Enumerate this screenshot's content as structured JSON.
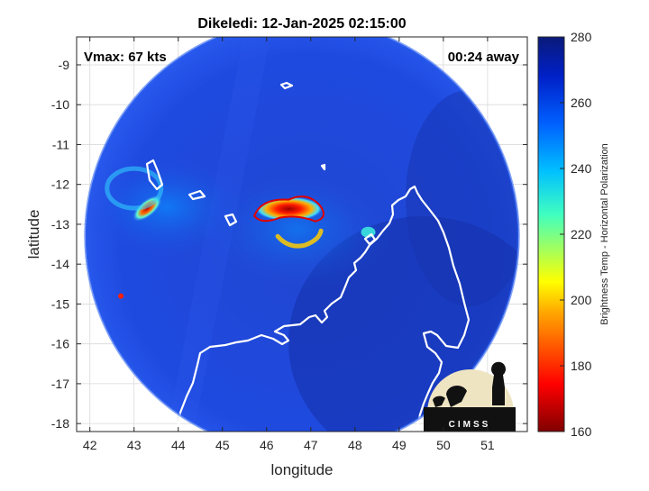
{
  "title": "Dikeledi: 12-Jan-2025 02:15:00",
  "vmax_text": "Vmax: 67 kts",
  "time_away_text": "00:24 away",
  "logo_text": "CIMSS",
  "colors": {
    "swath_base": "#1f45d8",
    "swath_dark": "#0f2a9e",
    "coastline": "#ffffff",
    "grid": "#d9d9d9"
  },
  "chart_data": {
    "type": "heatmap",
    "title": "Dikeledi: 12-Jan-2025 02:15:00",
    "xlabel": "longitude",
    "ylabel": "latitude",
    "xlim": [
      41.7,
      51.9
    ],
    "ylim": [
      -18.2,
      -8.3
    ],
    "xticks": [
      42,
      43,
      44,
      45,
      46,
      47,
      48,
      49,
      50,
      51
    ],
    "yticks": [
      -9,
      -10,
      -11,
      -12,
      -13,
      -14,
      -15,
      -16,
      -17,
      -18
    ],
    "grid": true,
    "colorbar": {
      "label": "Brightness Temp - Horizontal Polarization",
      "range": [
        160,
        280
      ],
      "ticks": [
        160,
        180,
        200,
        220,
        240,
        260,
        280
      ],
      "colormap": "jet"
    },
    "swath_edge": {
      "center_lon": 46.8,
      "center_lat": -13.3,
      "radius_deg": 4.9
    },
    "features": [
      {
        "name": "eyewall-north-arc",
        "lon": 46.7,
        "lat": -12.7,
        "tb_min": 165
      },
      {
        "name": "eyewall-south-arc",
        "lon": 46.7,
        "lat": -13.3,
        "tb_min": 190
      },
      {
        "name": "outer-band-northwest",
        "lon": 43.3,
        "lat": -12.6,
        "tb_min": 175
      },
      {
        "name": "outer-band-ring",
        "lon": 43.0,
        "lat": -12.1,
        "tb_min": 225
      },
      {
        "name": "small-cell-east",
        "lon": 48.3,
        "lat": -13.2,
        "tb_min": 215
      },
      {
        "name": "small-cell-west",
        "lon": 42.7,
        "lat": -14.8,
        "tb_min": 180
      }
    ]
  }
}
